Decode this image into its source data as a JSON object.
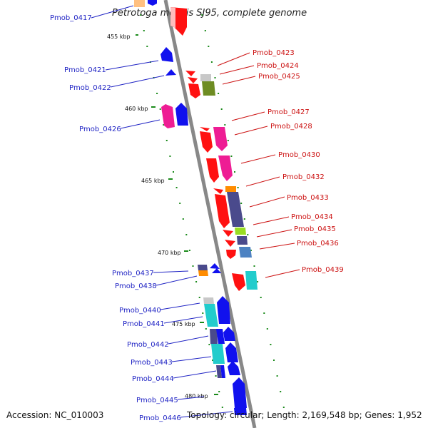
{
  "title": "Petrotoga mobilis SJ95, complete genome",
  "accession": "Accession: NC_010003",
  "topology": "Topology: circular; Length: 2,169,548 bp; Genes: 1,952",
  "colors": {
    "axis": "#888888",
    "tick": "#1a8a1a",
    "left_label": "#1f23c4",
    "right_label": "#cc1111",
    "red": "#ff1111",
    "blue": "#1111ee",
    "magenta": "#ee1d94",
    "navy": "#4a4a8c",
    "olive": "#6e8c22",
    "cyan": "#22cccc",
    "orange": "#ff8c00",
    "lightgray": "#c8c8c8",
    "lime": "#99dd22",
    "steel": "#4d82c2"
  },
  "scale_marks": [
    {
      "label": "455 kbp"
    },
    {
      "label": "460 kbp"
    },
    {
      "label": "465 kbp"
    },
    {
      "label": "470 kbp"
    },
    {
      "label": "475 kbp"
    },
    {
      "label": "480 kbp"
    }
  ],
  "left_labels": [
    "Pmob_0417",
    "Pmob_0421",
    "Pmob_0422",
    "Pmob_0426",
    "Pmob_0437",
    "Pmob_0438",
    "Pmob_0440",
    "Pmob_0441",
    "Pmob_0442",
    "Pmob_0443",
    "Pmob_0444",
    "Pmob_0445",
    "Pmob_0446"
  ],
  "right_labels": [
    "Pmob_0423",
    "Pmob_0424",
    "Pmob_0425",
    "Pmob_0427",
    "Pmob_0428",
    "Pmob_0430",
    "Pmob_0432",
    "Pmob_0433",
    "Pmob_0434",
    "Pmob_0435",
    "Pmob_0436",
    "Pmob_0439"
  ]
}
